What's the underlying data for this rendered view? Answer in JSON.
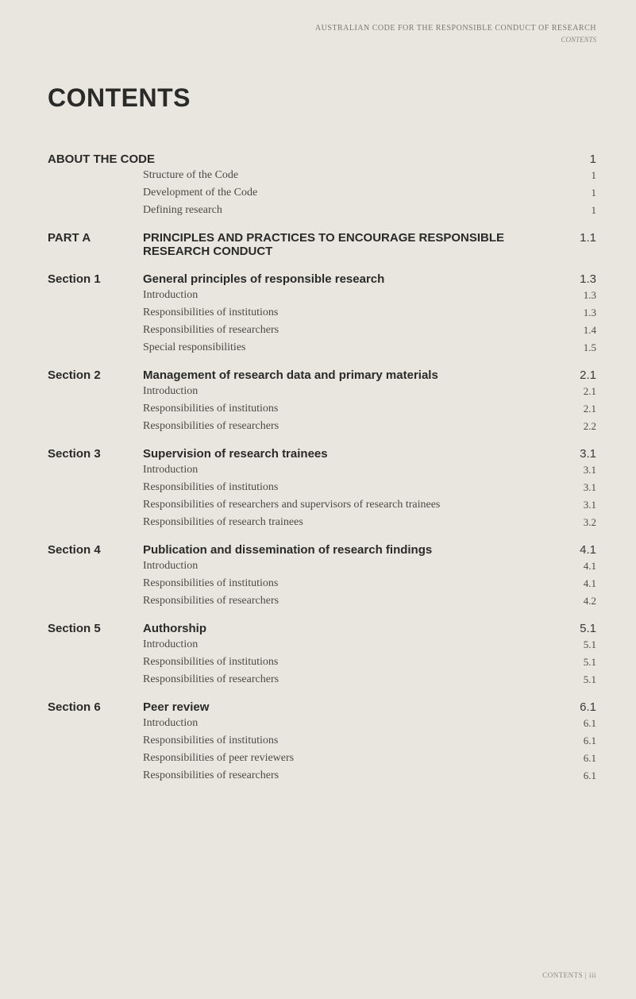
{
  "header": {
    "doc_title": "AUSTRALIAN CODE FOR THE RESPONSIBLE CONDUCT OF RESEARCH",
    "doc_subtitle": "CONTENTS"
  },
  "main_title": "CONTENTS",
  "sections": [
    {
      "label": "",
      "heading": "ABOUT THE CODE",
      "heading_label": "ABOUT THE CODE",
      "page": "1",
      "items": [
        {
          "text": "Structure of the Code",
          "page": "1"
        },
        {
          "text": "Development of the Code",
          "page": "1"
        },
        {
          "text": "Defining research",
          "page": "1"
        }
      ]
    },
    {
      "label": "PART A",
      "heading": "PRINCIPLES AND PRACTICES TO ENCOURAGE RESPONSIBLE RESEARCH CONDUCT",
      "page": "1.1",
      "items": []
    },
    {
      "label": "Section 1",
      "heading": "General principles of responsible research",
      "page": "1.3",
      "items": [
        {
          "text": "Introduction",
          "page": "1.3"
        },
        {
          "text": "Responsibilities of institutions",
          "page": "1.3"
        },
        {
          "text": "Responsibilities of researchers",
          "page": "1.4"
        },
        {
          "text": "Special responsibilities",
          "page": "1.5"
        }
      ]
    },
    {
      "label": "Section 2",
      "heading": "Management of research data and primary materials",
      "page": "2.1",
      "items": [
        {
          "text": "Introduction",
          "page": "2.1"
        },
        {
          "text": "Responsibilities of institutions",
          "page": "2.1"
        },
        {
          "text": "Responsibilities of researchers",
          "page": "2.2"
        }
      ]
    },
    {
      "label": "Section 3",
      "heading": "Supervision of research trainees",
      "page": "3.1",
      "items": [
        {
          "text": "Introduction",
          "page": "3.1"
        },
        {
          "text": "Responsibilities of institutions",
          "page": "3.1"
        },
        {
          "text": "Responsibilities of researchers and supervisors of research trainees",
          "page": "3.1"
        },
        {
          "text": "Responsibilities of research trainees",
          "page": "3.2"
        }
      ]
    },
    {
      "label": "Section 4",
      "heading": "Publication and dissemination of research findings",
      "page": "4.1",
      "items": [
        {
          "text": "Introduction",
          "page": "4.1"
        },
        {
          "text": "Responsibilities of institutions",
          "page": "4.1"
        },
        {
          "text": "Responsibilities of researchers",
          "page": "4.2"
        }
      ]
    },
    {
      "label": "Section 5",
      "heading": "Authorship",
      "page": "5.1",
      "items": [
        {
          "text": "Introduction",
          "page": "5.1"
        },
        {
          "text": "Responsibilities of institutions",
          "page": "5.1"
        },
        {
          "text": "Responsibilities of researchers",
          "page": "5.1"
        }
      ]
    },
    {
      "label": "Section 6",
      "heading": "Peer review",
      "page": "6.1",
      "items": [
        {
          "text": "Introduction",
          "page": "6.1"
        },
        {
          "text": "Responsibilities of institutions",
          "page": "6.1"
        },
        {
          "text": "Responsibilities of peer reviewers",
          "page": "6.1"
        },
        {
          "text": "Responsibilities of researchers",
          "page": "6.1"
        }
      ]
    }
  ],
  "footer": "CONTENTS | iii",
  "style": {
    "background_color": "#e8e6df",
    "heading_font": "Arial, Helvetica, sans-serif",
    "body_font": "Georgia, serif",
    "heading_color": "#2a2a28",
    "body_color": "#4a4a46",
    "muted_color": "#8a8a84",
    "main_title_fontsize": 32,
    "section_heading_fontsize": 15,
    "sub_item_fontsize": 14,
    "header_fontsize": 10
  }
}
